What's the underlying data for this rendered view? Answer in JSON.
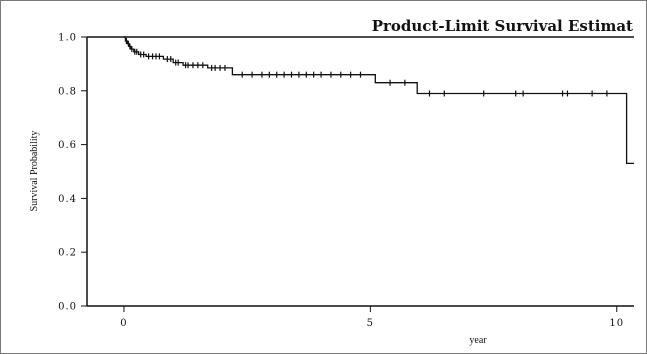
{
  "chart_data": {
    "type": "line",
    "subtype": "kaplan-meier step",
    "title": "Product-Limit Survival Estimat",
    "xlabel": "year",
    "ylabel": "Survival Probability",
    "xlim": [
      -0.75,
      10.35
    ],
    "ylim": [
      0.0,
      1.0
    ],
    "x_ticks": [
      0,
      5,
      10
    ],
    "y_ticks": [
      0.0,
      0.2,
      0.4,
      0.6,
      0.8,
      1.0
    ],
    "x_tick_labels": [
      "0",
      "5",
      "10"
    ],
    "y_tick_labels": [
      "0.0",
      "0.2",
      "0.4",
      "0.6",
      "0.8",
      "1.0"
    ],
    "grid": false,
    "color": "#111111",
    "series": [
      {
        "steps": [
          [
            0.0,
            1.0
          ],
          [
            0.03,
            0.985
          ],
          [
            0.07,
            0.975
          ],
          [
            0.1,
            0.965
          ],
          [
            0.14,
            0.955
          ],
          [
            0.2,
            0.945
          ],
          [
            0.3,
            0.935
          ],
          [
            0.45,
            0.928
          ],
          [
            0.8,
            0.918
          ],
          [
            1.0,
            0.905
          ],
          [
            1.2,
            0.895
          ],
          [
            1.7,
            0.885
          ],
          [
            2.2,
            0.86
          ],
          [
            5.1,
            0.83
          ],
          [
            5.95,
            0.79
          ],
          [
            10.2,
            0.53
          ],
          [
            10.35,
            0.53
          ]
        ],
        "censored": [
          0.05,
          0.09,
          0.12,
          0.16,
          0.22,
          0.26,
          0.34,
          0.4,
          0.5,
          0.58,
          0.65,
          0.72,
          0.88,
          0.95,
          1.05,
          1.1,
          1.25,
          1.3,
          1.4,
          1.5,
          1.6,
          1.78,
          1.85,
          1.95,
          2.05,
          2.4,
          2.6,
          2.8,
          2.95,
          3.1,
          3.25,
          3.4,
          3.55,
          3.7,
          3.85,
          4.0,
          4.2,
          4.4,
          4.6,
          4.8,
          5.4,
          5.7,
          6.2,
          6.5,
          7.3,
          7.95,
          8.1,
          8.9,
          9.0,
          9.5,
          9.8
        ]
      }
    ]
  }
}
